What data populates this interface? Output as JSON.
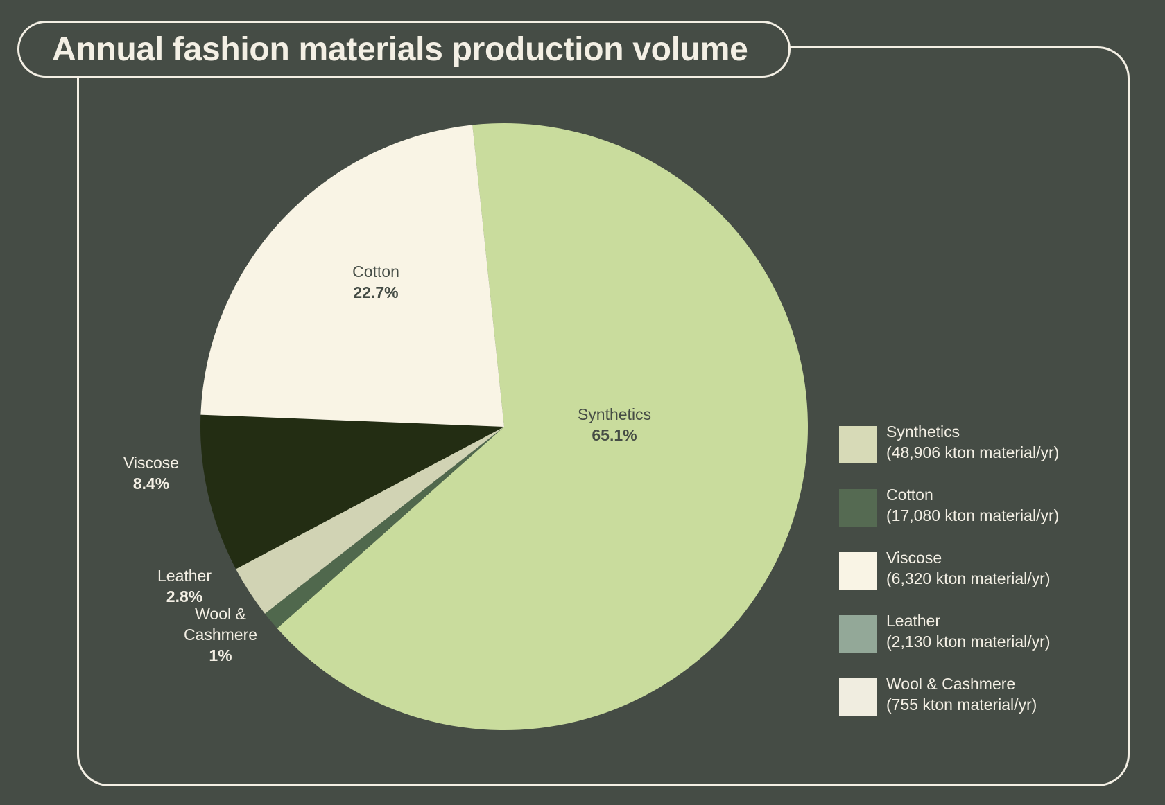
{
  "title": "Annual fashion materials production volume",
  "chart_data": {
    "type": "pie",
    "title": "Annual fashion materials production volume",
    "slices": [
      {
        "name": "Synthetics",
        "percent": "65.1%",
        "value": 65.1,
        "color": "#c9dc9d",
        "label_color": "#454c45"
      },
      {
        "name": "Wool &\nCashmere",
        "percent": "1%",
        "value": 1.0,
        "color": "#50684d",
        "label_color": "#f3efe4"
      },
      {
        "name": "Leather",
        "percent": "2.8%",
        "value": 2.8,
        "color": "#d1d3b4",
        "label_color": "#f3efe4"
      },
      {
        "name": "Viscose",
        "percent": "8.4%",
        "value": 8.4,
        "color": "#232d13",
        "label_color": "#f3efe4"
      },
      {
        "name": "Cotton",
        "percent": "22.7%",
        "value": 22.7,
        "color": "#f9f4e5",
        "label_color": "#454c45"
      }
    ],
    "legend": {
      "placement": "right",
      "items": [
        {
          "name": "Synthetics",
          "detail": "(48,906 kton material/yr)",
          "color": "#d7dab7"
        },
        {
          "name": "Cotton",
          "detail": "(17,080 kton material/yr)",
          "color": "#556a52"
        },
        {
          "name": "Viscose",
          "detail": "(6,320 kton material/yr)",
          "color": "#f9f4e5"
        },
        {
          "name": "Leather",
          "detail": "(2,130 kton material/yr)",
          "color": "#93a898"
        },
        {
          "name": "Wool & Cashmere",
          "detail": "(755 kton material/yr)",
          "color": "#f0ede0"
        }
      ]
    }
  }
}
